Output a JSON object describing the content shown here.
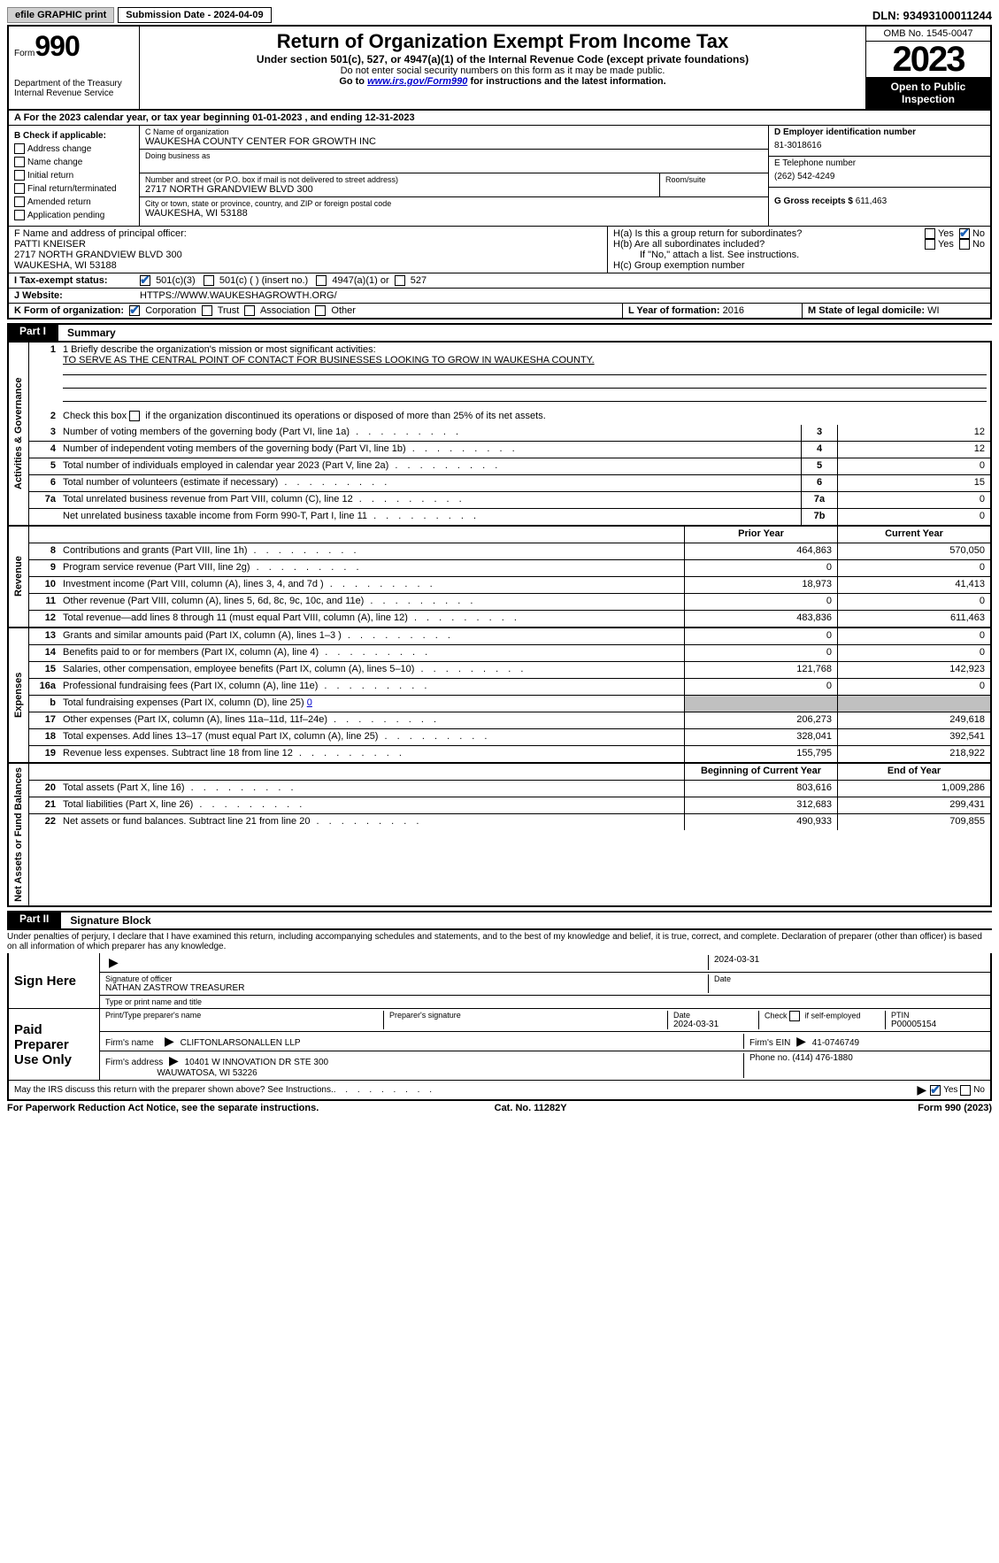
{
  "topbar": {
    "efile_label": "efile GRAPHIC print",
    "submission_label": "Submission Date - 2024-04-09",
    "dln_label": "DLN: 93493100011244"
  },
  "header": {
    "form_word": "Form",
    "form_number": "990",
    "dept": "Department of the Treasury Internal Revenue Service",
    "title": "Return of Organization Exempt From Income Tax",
    "subtitle": "Under section 501(c), 527, or 4947(a)(1) of the Internal Revenue Code (except private foundations)",
    "note1": "Do not enter social security numbers on this form as it may be made public.",
    "note2_pre": "Go to ",
    "note2_link": "www.irs.gov/Form990",
    "note2_post": " for instructions and the latest information.",
    "omb": "OMB No. 1545-0047",
    "year": "2023",
    "inspect": "Open to Public Inspection"
  },
  "lineA": "A For the 2023 calendar year, or tax year beginning 01-01-2023   , and ending 12-31-2023",
  "boxB": {
    "title": "B Check if applicable:",
    "items": [
      "Address change",
      "Name change",
      "Initial return",
      "Final return/terminated",
      "Amended return",
      "Application pending"
    ]
  },
  "boxC": {
    "label_name": "C Name of organization",
    "org_name": "WAUKESHA COUNTY CENTER FOR GROWTH INC",
    "label_dba": "Doing business as",
    "label_street": "Number and street (or P.O. box if mail is not delivered to street address)",
    "street": "2717 NORTH GRANDVIEW BLVD 300",
    "label_room": "Room/suite",
    "label_city": "City or town, state or province, country, and ZIP or foreign postal code",
    "city": "WAUKESHA, WI  53188"
  },
  "boxD": {
    "label": "D Employer identification number",
    "value": "81-3018616"
  },
  "boxE": {
    "label": "E Telephone number",
    "value": "(262) 542-4249"
  },
  "boxG": {
    "label": "G Gross receipts $",
    "value": "611,463"
  },
  "boxF": {
    "label": "F  Name and address of principal officer:",
    "name": "PATTI KNEISER",
    "addr1": "2717 NORTH GRANDVIEW BLVD 300",
    "addr2": "WAUKESHA, WI  53188"
  },
  "boxH": {
    "a_label": "H(a)  Is this a group return for subordinates?",
    "b_label": "H(b)  Are all subordinates included?",
    "b_note": "If \"No,\" attach a list. See instructions.",
    "c_label": "H(c)  Group exemption number",
    "yes": "Yes",
    "no": "No"
  },
  "lineI": {
    "label": "I   Tax-exempt status:",
    "opt1": "501(c)(3)",
    "opt2": "501(c) (  ) (insert no.)",
    "opt3": "4947(a)(1) or",
    "opt4": "527"
  },
  "lineJ": {
    "label": "J   Website:",
    "value": "HTTPS://WWW.WAUKESHAGROWTH.ORG/"
  },
  "lineK": {
    "label": "K Form of organization:",
    "opts": [
      "Corporation",
      "Trust",
      "Association",
      "Other"
    ]
  },
  "lineL": {
    "label": "L Year of formation:",
    "value": "2016"
  },
  "lineM": {
    "label": "M State of legal domicile:",
    "value": "WI"
  },
  "part1": {
    "tag": "Part I",
    "title": "Summary"
  },
  "summary": {
    "q1_label": "1  Briefly describe the organization's mission or most significant activities:",
    "q1_value": "TO SERVE AS THE CENTRAL POINT OF CONTACT FOR BUSINESSES LOOKING TO GROW IN WAUKESHA COUNTY.",
    "q2": "Check this box      if the organization discontinued its operations or disposed of more than 25% of its net assets.",
    "vlabels": {
      "gov": "Activities & Governance",
      "rev": "Revenue",
      "exp": "Expenses",
      "net": "Net Assets or Fund Balances"
    },
    "col_prior": "Prior Year",
    "col_current": "Current Year",
    "col_begin": "Beginning of Current Year",
    "col_end": "End of Year",
    "rows_gov": [
      {
        "n": "3",
        "d": "Number of voting members of the governing body (Part VI, line 1a)",
        "c": "3",
        "v": "12"
      },
      {
        "n": "4",
        "d": "Number of independent voting members of the governing body (Part VI, line 1b)",
        "c": "4",
        "v": "12"
      },
      {
        "n": "5",
        "d": "Total number of individuals employed in calendar year 2023 (Part V, line 2a)",
        "c": "5",
        "v": "0"
      },
      {
        "n": "6",
        "d": "Total number of volunteers (estimate if necessary)",
        "c": "6",
        "v": "15"
      },
      {
        "n": "7a",
        "d": "Total unrelated business revenue from Part VIII, column (C), line 12",
        "c": "7a",
        "v": "0"
      },
      {
        "n": "",
        "d": "Net unrelated business taxable income from Form 990-T, Part I, line 11",
        "c": "7b",
        "v": "0"
      }
    ],
    "rows_rev": [
      {
        "n": "8",
        "d": "Contributions and grants (Part VIII, line 1h)",
        "p": "464,863",
        "c": "570,050"
      },
      {
        "n": "9",
        "d": "Program service revenue (Part VIII, line 2g)",
        "p": "0",
        "c": "0"
      },
      {
        "n": "10",
        "d": "Investment income (Part VIII, column (A), lines 3, 4, and 7d )",
        "p": "18,973",
        "c": "41,413"
      },
      {
        "n": "11",
        "d": "Other revenue (Part VIII, column (A), lines 5, 6d, 8c, 9c, 10c, and 11e)",
        "p": "0",
        "c": "0"
      },
      {
        "n": "12",
        "d": "Total revenue—add lines 8 through 11 (must equal Part VIII, column (A), line 12)",
        "p": "483,836",
        "c": "611,463"
      }
    ],
    "rows_exp": [
      {
        "n": "13",
        "d": "Grants and similar amounts paid (Part IX, column (A), lines 1–3 )",
        "p": "0",
        "c": "0"
      },
      {
        "n": "14",
        "d": "Benefits paid to or for members (Part IX, column (A), line 4)",
        "p": "0",
        "c": "0"
      },
      {
        "n": "15",
        "d": "Salaries, other compensation, employee benefits (Part IX, column (A), lines 5–10)",
        "p": "121,768",
        "c": "142,923"
      },
      {
        "n": "16a",
        "d": "Professional fundraising fees (Part IX, column (A), line 11e)",
        "p": "0",
        "c": "0"
      },
      {
        "n": "b",
        "d": "Total fundraising expenses (Part IX, column (D), line 25) 0",
        "p": "",
        "c": "",
        "shade": true
      },
      {
        "n": "17",
        "d": "Other expenses (Part IX, column (A), lines 11a–11d, 11f–24e)",
        "p": "206,273",
        "c": "249,618"
      },
      {
        "n": "18",
        "d": "Total expenses. Add lines 13–17 (must equal Part IX, column (A), line 25)",
        "p": "328,041",
        "c": "392,541"
      },
      {
        "n": "19",
        "d": "Revenue less expenses. Subtract line 18 from line 12",
        "p": "155,795",
        "c": "218,922"
      }
    ],
    "rows_net": [
      {
        "n": "20",
        "d": "Total assets (Part X, line 16)",
        "p": "803,616",
        "c": "1,009,286"
      },
      {
        "n": "21",
        "d": "Total liabilities (Part X, line 26)",
        "p": "312,683",
        "c": "299,431"
      },
      {
        "n": "22",
        "d": "Net assets or fund balances. Subtract line 21 from line 20",
        "p": "490,933",
        "c": "709,855"
      }
    ]
  },
  "part2": {
    "tag": "Part II",
    "title": "Signature Block"
  },
  "sig": {
    "perjury": "Under penalties of perjury, I declare that I have examined this return, including accompanying schedules and statements, and to the best of my knowledge and belief, it is true, correct, and complete. Declaration of preparer (other than officer) is based on all information of which preparer has any knowledge.",
    "sign_here": "Sign Here",
    "officer_sig_lbl": "Signature of officer",
    "officer_name": "NATHAN ZASTROW  TREASURER",
    "officer_type_lbl": "Type or print name and title",
    "date_lbl": "Date",
    "date_top": "2024-03-31",
    "paid": "Paid Preparer Use Only",
    "prep_name_lbl": "Print/Type preparer's name",
    "prep_sig_lbl": "Preparer's signature",
    "prep_date_lbl": "Date",
    "prep_date": "2024-03-31",
    "self_emp": "Check        if self-employed",
    "ptin_lbl": "PTIN",
    "ptin": "P00005154",
    "firm_name_lbl": "Firm's name",
    "firm_name": "CLIFTONLARSONALLEN LLP",
    "firm_ein_lbl": "Firm's EIN",
    "firm_ein": "41-0746749",
    "firm_addr_lbl": "Firm's address",
    "firm_addr1": "10401 W INNOVATION DR STE 300",
    "firm_addr2": "WAUWATOSA, WI  53226",
    "phone_lbl": "Phone no.",
    "phone": "(414) 476-1880",
    "discuss": "May the IRS discuss this return with the preparer shown above? See Instructions.",
    "yes": "Yes",
    "no": "No"
  },
  "footer": {
    "left": "For Paperwork Reduction Act Notice, see the separate instructions.",
    "mid": "Cat. No. 11282Y",
    "right_pre": "Form ",
    "right_bold": "990",
    "right_post": " (2023)"
  }
}
